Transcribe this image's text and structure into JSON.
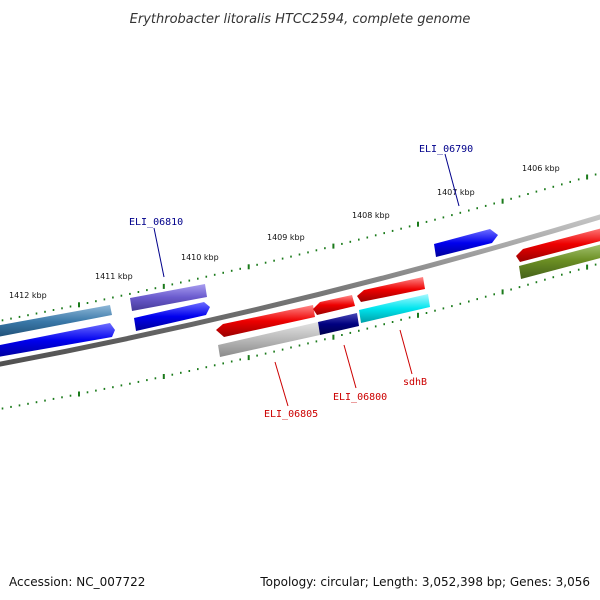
{
  "title": "Erythrobacter litoralis HTCC2594, complete genome",
  "footer": {
    "accession": "Accession: NC_007722",
    "summary": "Topology: circular; Length: 3,052,398 bp; Genes: 3,056"
  },
  "scale_labels": [
    "1412 kbp",
    "1411 kbp",
    "1410 kbp",
    "1409 kbp",
    "1408 kbp",
    "1407 kbp",
    "1406 kbp"
  ],
  "genes": [
    {
      "label": "ELI_06810",
      "color": "#00008b",
      "strand": "forward"
    },
    {
      "label": "ELI_06790",
      "color": "#00008b",
      "strand": "forward"
    },
    {
      "label": "ELI_06805",
      "color": "#cc0000",
      "strand": "reverse"
    },
    {
      "label": "ELI_06800",
      "color": "#cc0000",
      "strand": "reverse"
    },
    {
      "label": "sdhB",
      "color": "#cc0000",
      "strand": "reverse"
    }
  ],
  "colors": {
    "forward_blue": "#0000ee",
    "steel_blue": "#2d6fa3",
    "slate_blue": "#6a5acd",
    "red": "#ee0000",
    "olive": "#6b8e23",
    "gray": "#b0b0b0",
    "navy": "#000080",
    "cyan": "#00e5ee",
    "backbone": "#808080",
    "tick": "#1a7a1a"
  }
}
